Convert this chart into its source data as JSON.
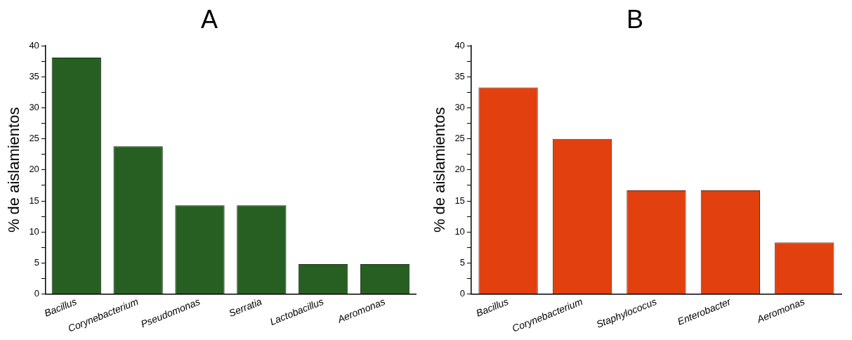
{
  "chart_data": [
    {
      "type": "bar",
      "title": "A",
      "ylabel": "% de aislamientos",
      "categories": [
        "Bacillus",
        "Corynebacterium",
        "Pseudomonas",
        "Serratia",
        "Lactobacillus",
        "Aeromonas"
      ],
      "values": [
        38.1,
        23.8,
        14.3,
        14.3,
        4.8,
        4.8
      ],
      "color": "#275f23",
      "ylim": [
        0,
        40
      ],
      "yticks": [
        0,
        {
          "value": 2.5,
          "label": null
        },
        5,
        {
          "value": 7.5,
          "label": null
        },
        10,
        {
          "value": 12.5,
          "label": null
        },
        15,
        {
          "value": 17.5,
          "label": null
        },
        20,
        {
          "value": 22.5,
          "label": null
        },
        25,
        {
          "value": 27.5,
          "label": null
        },
        30,
        {
          "value": 32.5,
          "label": null
        },
        35,
        {
          "value": 37.5,
          "label": null
        },
        40
      ],
      "grid": false,
      "legend": false
    },
    {
      "type": "bar",
      "title": "B",
      "ylabel": "% de aislamientos",
      "categories": [
        "Bacillus",
        "Corynebacterium",
        "Staphylococus",
        "Enterobacter",
        "Aeromonas"
      ],
      "values": [
        33.3,
        25,
        16.7,
        16.7,
        8.3
      ],
      "color": "#e2400f",
      "ylim": [
        0,
        40
      ],
      "yticks": [
        0,
        {
          "value": 2.5,
          "label": null
        },
        5,
        {
          "value": 7.5,
          "label": null
        },
        10,
        {
          "value": 12.5,
          "label": null
        },
        15,
        {
          "value": 17.5,
          "label": null
        },
        20,
        {
          "value": 22.5,
          "label": null
        },
        25,
        {
          "value": 27.5,
          "label": null
        },
        30,
        {
          "value": 32.5,
          "label": null
        },
        35,
        {
          "value": 37.5,
          "label": null
        },
        40
      ],
      "grid": false,
      "legend": false
    }
  ]
}
